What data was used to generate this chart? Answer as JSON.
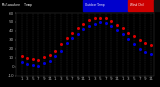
{
  "title_left": "Milwaukee  Temp",
  "title_sub": "Wind chill",
  "temp": [
    12,
    10,
    9,
    8,
    11,
    13,
    18,
    25,
    32,
    38,
    43,
    48,
    52,
    54,
    55,
    54,
    51,
    47,
    43,
    38,
    34,
    30,
    27,
    24
  ],
  "wind_chill": [
    5,
    3,
    2,
    1,
    4,
    6,
    12,
    18,
    26,
    32,
    37,
    42,
    46,
    48,
    50,
    49,
    46,
    41,
    37,
    31,
    25,
    20,
    17,
    14
  ],
  "temp_color": "#dd0000",
  "wc_color": "#0000dd",
  "bg_color": "#000000",
  "plot_bg": "#000000",
  "grid_color": "#666666",
  "title_bg": "#1a1a1a",
  "title_blue_bg": "#0000cc",
  "title_red_bg": "#cc0000",
  "ylim_min": -10,
  "ylim_max": 60,
  "yticks": [
    -10,
    0,
    10,
    20,
    30,
    40,
    50,
    60
  ],
  "xlim_min": 0,
  "xlim_max": 24,
  "xtick_labels": [
    "1",
    "3",
    "5",
    "7",
    "9",
    "11",
    "1",
    "3",
    "5",
    "7",
    "9",
    "11",
    "1",
    "3",
    "5",
    "7",
    "9",
    "11",
    "1",
    "3",
    "5",
    "7",
    "9",
    "11"
  ],
  "tick_color": "#aaaaaa",
  "tick_fontsize": 3.0,
  "marker_size": 1.2,
  "spine_color": "#444444"
}
